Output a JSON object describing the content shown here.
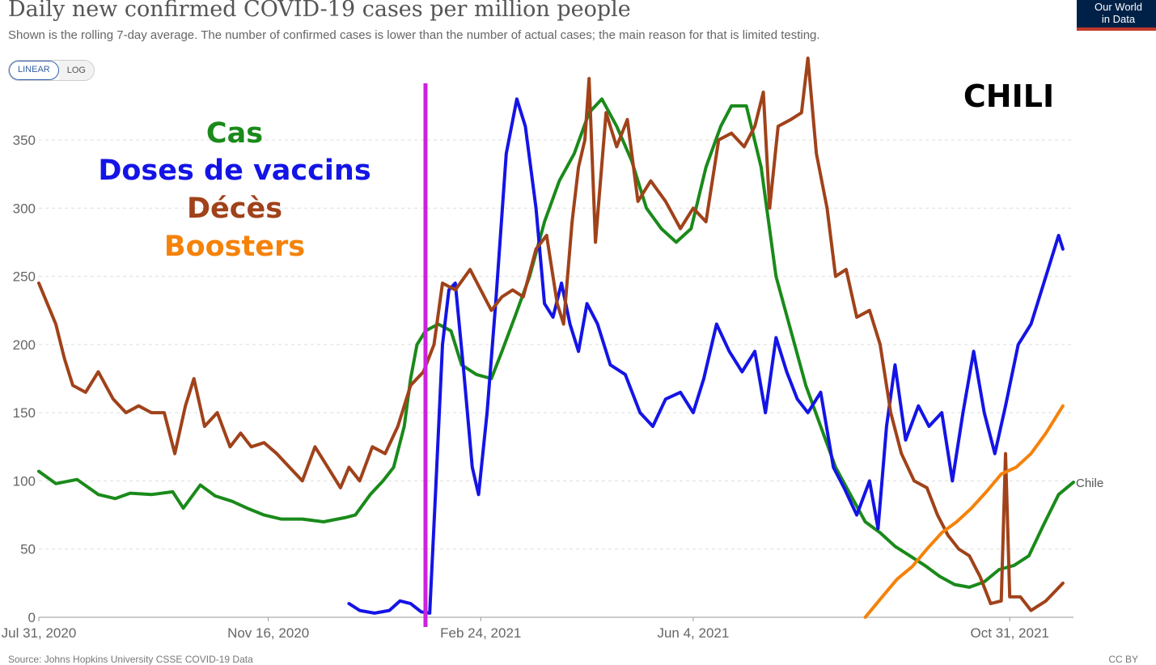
{
  "header": {
    "title": "Daily new confirmed COVID-19 cases per million people",
    "subtitle": "Shown is the rolling 7-day average. The number of confirmed cases is lower than the number of actual cases; the main reason for that is limited testing.",
    "logo_line1": "Our World",
    "logo_line2": "in Data"
  },
  "scale_toggle": {
    "linear_label": "LINEAR",
    "log_label": "LOG",
    "selected": "LINEAR"
  },
  "annotations": {
    "country_title": "CHILI",
    "legend": [
      {
        "label": "Cas",
        "color": "#1a8a1a"
      },
      {
        "label": "Doses de vaccins",
        "color": "#1414e6"
      },
      {
        "label": "Décès",
        "color": "#a0421a"
      },
      {
        "label": "Boosters",
        "color": "#f5820a"
      }
    ],
    "marker_color": "#cc22dd",
    "end_label": "Chile"
  },
  "footer": {
    "source": "Source: Johns Hopkins University CSSE COVID-19 Data",
    "license": "CC BY"
  },
  "chart_data": {
    "type": "line",
    "title": "Daily new confirmed COVID-19 cases per million people",
    "xlabel": "",
    "ylabel": "",
    "x_range": [
      "2020-07-31",
      "2021-11-30"
    ],
    "ylim": [
      0,
      400
    ],
    "y_ticks": [
      0,
      50,
      100,
      150,
      200,
      250,
      300,
      350
    ],
    "x_ticks": [
      {
        "date": "2020-07-31",
        "label": "Jul 31, 2020"
      },
      {
        "date": "2020-11-16",
        "label": "Nov 16, 2020"
      },
      {
        "date": "2021-02-24",
        "label": "Feb 24, 2021"
      },
      {
        "date": "2021-06-04",
        "label": "Jun 4, 2021"
      },
      {
        "date": "2021-10-31",
        "label": "Oct 31, 2021"
      }
    ],
    "grid": "horizontal-dashed",
    "vertical_marker_date": "2021-01-29",
    "series": [
      {
        "name": "Cas",
        "color": "#1a8a1a",
        "points": [
          [
            "2020-07-31",
            107
          ],
          [
            "2020-08-08",
            98
          ],
          [
            "2020-08-18",
            101
          ],
          [
            "2020-08-28",
            90
          ],
          [
            "2020-09-05",
            87
          ],
          [
            "2020-09-12",
            91
          ],
          [
            "2020-09-22",
            90
          ],
          [
            "2020-10-02",
            92
          ],
          [
            "2020-10-07",
            80
          ],
          [
            "2020-10-15",
            97
          ],
          [
            "2020-10-22",
            89
          ],
          [
            "2020-10-30",
            85
          ],
          [
            "2020-11-06",
            80
          ],
          [
            "2020-11-14",
            75
          ],
          [
            "2020-11-22",
            72
          ],
          [
            "2020-12-02",
            72
          ],
          [
            "2020-12-12",
            70
          ],
          [
            "2020-12-22",
            73
          ],
          [
            "2020-12-27",
            75
          ],
          [
            "2021-01-03",
            90
          ],
          [
            "2021-01-09",
            100
          ],
          [
            "2021-01-14",
            110
          ],
          [
            "2021-01-19",
            140
          ],
          [
            "2021-01-22",
            175
          ],
          [
            "2021-01-25",
            200
          ],
          [
            "2021-01-29",
            210
          ],
          [
            "2021-02-04",
            215
          ],
          [
            "2021-02-10",
            210
          ],
          [
            "2021-02-15",
            185
          ],
          [
            "2021-02-22",
            178
          ],
          [
            "2021-03-01",
            175
          ],
          [
            "2021-03-06",
            195
          ],
          [
            "2021-03-12",
            220
          ],
          [
            "2021-03-19",
            250
          ],
          [
            "2021-03-26",
            290
          ],
          [
            "2021-04-02",
            320
          ],
          [
            "2021-04-09",
            340
          ],
          [
            "2021-04-16",
            370
          ],
          [
            "2021-04-22",
            380
          ],
          [
            "2021-04-29",
            360
          ],
          [
            "2021-05-06",
            335
          ],
          [
            "2021-05-13",
            300
          ],
          [
            "2021-05-20",
            285
          ],
          [
            "2021-05-27",
            275
          ],
          [
            "2021-06-03",
            285
          ],
          [
            "2021-06-10",
            330
          ],
          [
            "2021-06-17",
            360
          ],
          [
            "2021-06-22",
            375
          ],
          [
            "2021-06-29",
            375
          ],
          [
            "2021-07-06",
            330
          ],
          [
            "2021-07-13",
            250
          ],
          [
            "2021-07-20",
            210
          ],
          [
            "2021-07-27",
            170
          ],
          [
            "2021-08-03",
            140
          ],
          [
            "2021-08-10",
            110
          ],
          [
            "2021-08-17",
            90
          ],
          [
            "2021-08-24",
            70
          ],
          [
            "2021-08-31",
            62
          ],
          [
            "2021-09-07",
            52
          ],
          [
            "2021-09-14",
            45
          ],
          [
            "2021-09-21",
            38
          ],
          [
            "2021-09-28",
            30
          ],
          [
            "2021-10-05",
            24
          ],
          [
            "2021-10-12",
            22
          ],
          [
            "2021-10-19",
            26
          ],
          [
            "2021-10-26",
            35
          ],
          [
            "2021-11-02",
            38
          ],
          [
            "2021-11-09",
            45
          ],
          [
            "2021-11-16",
            68
          ],
          [
            "2021-11-23",
            90
          ],
          [
            "2021-11-30",
            99
          ]
        ]
      },
      {
        "name": "Doses de vaccins",
        "color": "#1414e6",
        "points": [
          [
            "2020-12-24",
            10
          ],
          [
            "2020-12-29",
            5
          ],
          [
            "2021-01-05",
            3
          ],
          [
            "2021-01-12",
            5
          ],
          [
            "2021-01-17",
            12
          ],
          [
            "2021-01-22",
            10
          ],
          [
            "2021-01-27",
            4
          ],
          [
            "2021-01-31",
            3
          ],
          [
            "2021-02-03",
            100
          ],
          [
            "2021-02-06",
            200
          ],
          [
            "2021-02-09",
            240
          ],
          [
            "2021-02-12",
            245
          ],
          [
            "2021-02-16",
            180
          ],
          [
            "2021-02-20",
            110
          ],
          [
            "2021-02-23",
            90
          ],
          [
            "2021-02-27",
            150
          ],
          [
            "2021-03-03",
            230
          ],
          [
            "2021-03-08",
            340
          ],
          [
            "2021-03-13",
            380
          ],
          [
            "2021-03-17",
            360
          ],
          [
            "2021-03-22",
            300
          ],
          [
            "2021-03-26",
            230
          ],
          [
            "2021-03-30",
            220
          ],
          [
            "2021-04-03",
            245
          ],
          [
            "2021-04-07",
            215
          ],
          [
            "2021-04-11",
            195
          ],
          [
            "2021-04-15",
            230
          ],
          [
            "2021-04-20",
            215
          ],
          [
            "2021-04-26",
            185
          ],
          [
            "2021-05-03",
            178
          ],
          [
            "2021-05-10",
            150
          ],
          [
            "2021-05-16",
            140
          ],
          [
            "2021-05-22",
            160
          ],
          [
            "2021-05-29",
            165
          ],
          [
            "2021-06-04",
            150
          ],
          [
            "2021-06-09",
            175
          ],
          [
            "2021-06-15",
            215
          ],
          [
            "2021-06-21",
            195
          ],
          [
            "2021-06-27",
            180
          ],
          [
            "2021-07-03",
            195
          ],
          [
            "2021-07-08",
            150
          ],
          [
            "2021-07-13",
            205
          ],
          [
            "2021-07-18",
            180
          ],
          [
            "2021-07-23",
            160
          ],
          [
            "2021-07-28",
            150
          ],
          [
            "2021-08-03",
            165
          ],
          [
            "2021-08-09",
            110
          ],
          [
            "2021-08-14",
            95
          ],
          [
            "2021-08-20",
            75
          ],
          [
            "2021-08-26",
            100
          ],
          [
            "2021-08-30",
            65
          ],
          [
            "2021-09-03",
            140
          ],
          [
            "2021-09-07",
            185
          ],
          [
            "2021-09-12",
            130
          ],
          [
            "2021-09-18",
            155
          ],
          [
            "2021-09-23",
            140
          ],
          [
            "2021-09-29",
            150
          ],
          [
            "2021-10-04",
            100
          ],
          [
            "2021-10-09",
            150
          ],
          [
            "2021-10-14",
            195
          ],
          [
            "2021-10-19",
            150
          ],
          [
            "2021-10-24",
            120
          ],
          [
            "2021-10-29",
            155
          ],
          [
            "2021-11-04",
            200
          ],
          [
            "2021-11-10",
            215
          ],
          [
            "2021-11-17",
            250
          ],
          [
            "2021-11-23",
            280
          ],
          [
            "2021-11-25",
            270
          ]
        ]
      },
      {
        "name": "Décès",
        "color": "#a0421a",
        "points": [
          [
            "2020-07-31",
            245
          ],
          [
            "2020-08-04",
            230
          ],
          [
            "2020-08-08",
            215
          ],
          [
            "2020-08-12",
            190
          ],
          [
            "2020-08-16",
            170
          ],
          [
            "2020-08-22",
            165
          ],
          [
            "2020-08-28",
            180
          ],
          [
            "2020-09-04",
            160
          ],
          [
            "2020-09-10",
            150
          ],
          [
            "2020-09-16",
            155
          ],
          [
            "2020-09-22",
            150
          ],
          [
            "2020-09-28",
            150
          ],
          [
            "2020-10-03",
            120
          ],
          [
            "2020-10-08",
            155
          ],
          [
            "2020-10-12",
            175
          ],
          [
            "2020-10-17",
            140
          ],
          [
            "2020-10-23",
            150
          ],
          [
            "2020-10-29",
            125
          ],
          [
            "2020-11-03",
            135
          ],
          [
            "2020-11-08",
            125
          ],
          [
            "2020-11-14",
            128
          ],
          [
            "2020-11-20",
            120
          ],
          [
            "2020-11-26",
            110
          ],
          [
            "2020-12-02",
            100
          ],
          [
            "2020-12-08",
            125
          ],
          [
            "2020-12-14",
            110
          ],
          [
            "2020-12-20",
            95
          ],
          [
            "2020-12-24",
            110
          ],
          [
            "2020-12-29",
            100
          ],
          [
            "2021-01-04",
            125
          ],
          [
            "2021-01-10",
            120
          ],
          [
            "2021-01-16",
            140
          ],
          [
            "2021-01-22",
            170
          ],
          [
            "2021-01-28",
            180
          ],
          [
            "2021-02-02",
            200
          ],
          [
            "2021-02-06",
            245
          ],
          [
            "2021-02-12",
            240
          ],
          [
            "2021-02-19",
            255
          ],
          [
            "2021-02-24",
            240
          ],
          [
            "2021-03-01",
            225
          ],
          [
            "2021-03-06",
            235
          ],
          [
            "2021-03-11",
            240
          ],
          [
            "2021-03-16",
            235
          ],
          [
            "2021-03-22",
            270
          ],
          [
            "2021-03-27",
            280
          ],
          [
            "2021-04-01",
            230
          ],
          [
            "2021-04-04",
            215
          ],
          [
            "2021-04-08",
            290
          ],
          [
            "2021-04-11",
            330
          ],
          [
            "2021-04-14",
            350
          ],
          [
            "2021-04-16",
            395
          ],
          [
            "2021-04-19",
            275
          ],
          [
            "2021-04-24",
            370
          ],
          [
            "2021-04-29",
            345
          ],
          [
            "2021-05-04",
            365
          ],
          [
            "2021-05-09",
            305
          ],
          [
            "2021-05-15",
            320
          ],
          [
            "2021-05-22",
            305
          ],
          [
            "2021-05-29",
            285
          ],
          [
            "2021-06-04",
            300
          ],
          [
            "2021-06-10",
            290
          ],
          [
            "2021-06-16",
            350
          ],
          [
            "2021-06-22",
            355
          ],
          [
            "2021-06-28",
            345
          ],
          [
            "2021-07-03",
            360
          ],
          [
            "2021-07-07",
            385
          ],
          [
            "2021-07-10",
            300
          ],
          [
            "2021-07-14",
            360
          ],
          [
            "2021-07-20",
            365
          ],
          [
            "2021-07-25",
            370
          ],
          [
            "2021-07-28",
            410
          ],
          [
            "2021-08-01",
            340
          ],
          [
            "2021-08-06",
            300
          ],
          [
            "2021-08-10",
            250
          ],
          [
            "2021-08-15",
            255
          ],
          [
            "2021-08-20",
            220
          ],
          [
            "2021-08-26",
            225
          ],
          [
            "2021-08-31",
            200
          ],
          [
            "2021-09-05",
            150
          ],
          [
            "2021-09-10",
            120
          ],
          [
            "2021-09-16",
            100
          ],
          [
            "2021-09-22",
            95
          ],
          [
            "2021-09-27",
            75
          ],
          [
            "2021-10-02",
            60
          ],
          [
            "2021-10-07",
            50
          ],
          [
            "2021-10-12",
            45
          ],
          [
            "2021-10-17",
            30
          ],
          [
            "2021-10-22",
            10
          ],
          [
            "2021-10-27",
            12
          ],
          [
            "2021-10-29",
            120
          ],
          [
            "2021-10-31",
            15
          ],
          [
            "2021-11-05",
            15
          ],
          [
            "2021-11-10",
            5
          ],
          [
            "2021-11-17",
            12
          ],
          [
            "2021-11-25",
            25
          ]
        ]
      },
      {
        "name": "Boosters",
        "color": "#f5820a",
        "points": [
          [
            "2021-08-24",
            0
          ],
          [
            "2021-09-01",
            15
          ],
          [
            "2021-09-08",
            28
          ],
          [
            "2021-09-15",
            37
          ],
          [
            "2021-09-22",
            50
          ],
          [
            "2021-09-29",
            62
          ],
          [
            "2021-10-06",
            70
          ],
          [
            "2021-10-13",
            80
          ],
          [
            "2021-10-20",
            92
          ],
          [
            "2021-10-27",
            105
          ],
          [
            "2021-11-03",
            110
          ],
          [
            "2021-11-10",
            120
          ],
          [
            "2021-11-17",
            135
          ],
          [
            "2021-11-25",
            155
          ]
        ]
      }
    ]
  }
}
